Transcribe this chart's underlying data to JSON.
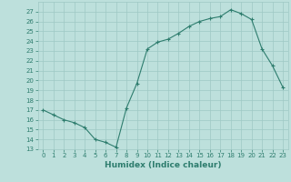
{
  "x": [
    0,
    1,
    2,
    3,
    4,
    5,
    6,
    7,
    8,
    9,
    10,
    11,
    12,
    13,
    14,
    15,
    16,
    17,
    18,
    19,
    20,
    21,
    22,
    23
  ],
  "y": [
    17,
    16.5,
    16,
    15.7,
    15.2,
    14,
    13.7,
    13.2,
    17.2,
    19.7,
    23.2,
    23.9,
    24.2,
    24.8,
    25.5,
    26,
    26.3,
    26.5,
    27.2,
    26.8,
    26.2,
    23.2,
    21.5,
    19.3
  ],
  "line_color": "#2e7d6e",
  "marker": "+",
  "bg_color": "#bde0dc",
  "grid_color": "#9ec8c4",
  "xlabel": "Humidex (Indice chaleur)",
  "xlim": [
    -0.5,
    23.5
  ],
  "ylim": [
    13,
    28
  ],
  "yticks": [
    13,
    14,
    15,
    16,
    17,
    18,
    19,
    20,
    21,
    22,
    23,
    24,
    25,
    26,
    27
  ],
  "xticks": [
    0,
    1,
    2,
    3,
    4,
    5,
    6,
    7,
    8,
    9,
    10,
    11,
    12,
    13,
    14,
    15,
    16,
    17,
    18,
    19,
    20,
    21,
    22,
    23
  ],
  "font_color": "#2e7d6e",
  "tick_fontsize": 5.0,
  "label_fontsize": 6.5
}
